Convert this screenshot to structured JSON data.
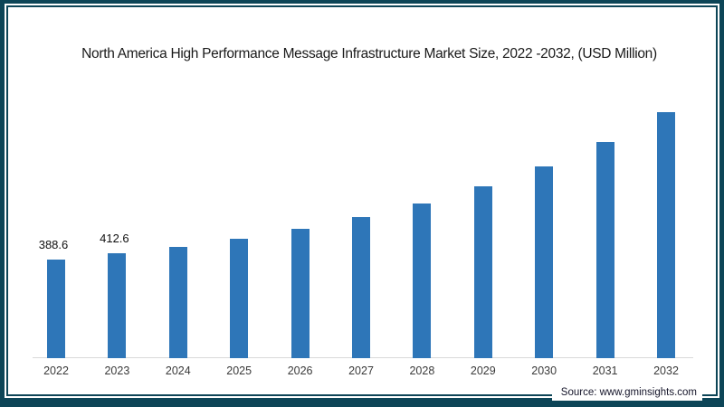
{
  "chart_data": {
    "type": "bar",
    "title": "North America High Performance Message Infrastructure Market Size, 2022 -2032, (USD Million)",
    "categories": [
      "2022",
      "2023",
      "2024",
      "2025",
      "2026",
      "2027",
      "2028",
      "2029",
      "2030",
      "2031",
      "2032"
    ],
    "values": [
      388.6,
      412.6,
      438,
      472,
      510,
      558,
      612,
      678,
      758,
      853,
      973
    ],
    "data_labels": {
      "2022": "388.6",
      "2023": "412.6"
    },
    "xlabel": "",
    "ylabel": "",
    "ylim": [
      0,
      1000
    ],
    "grid": false,
    "legend": false,
    "bar_color": "#2e76b8",
    "axis_line_color": "#d9d9d9"
  },
  "source": "Source: www.gminsights.com",
  "colors": {
    "frame": "#0d4557",
    "card_background": "#ffffff",
    "title_text": "#1a1a1a",
    "tick_text": "#3a3a3a"
  }
}
